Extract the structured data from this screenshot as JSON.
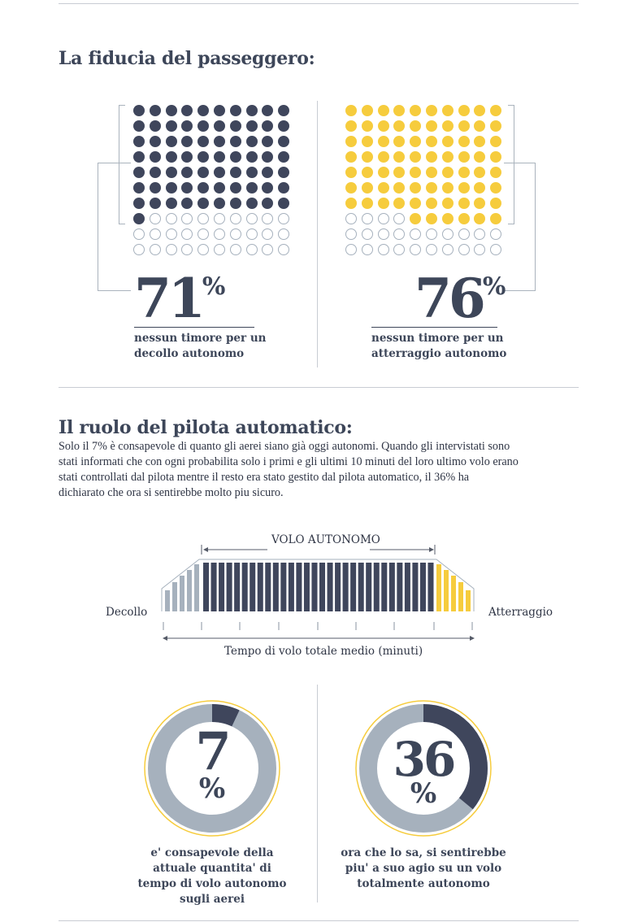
{
  "section1": {
    "title": "La fiducia del passeggero:",
    "left": {
      "percent": "71",
      "percent_sign": "%",
      "caption_line1": "nessun timore per un",
      "caption_line2": "decollo autonomo",
      "filled_dots": 71,
      "total_dots": 100,
      "color": "#3f465c"
    },
    "right": {
      "percent": "76",
      "percent_sign": "%",
      "caption_line1": "nessun timore per un",
      "caption_line2": "atterraggio autonomo",
      "filled_dots": 76,
      "total_dots": 100,
      "color": "#f6cc3d"
    }
  },
  "section2": {
    "title": "Il ruolo del pilota automatico:",
    "paragraph_lines": [
      "Solo il 7% è consapevole di quanto gli aerei siano già oggi autonomi. Quando gli intervistati sono",
      "stati informati che con ogni probabilita solo i primi e gli ultimi 10 minuti del loro ultimo volo erano",
      "stati controllati dal pilota mentre il resto era stato gestito dal pilota automatico, il 36% ha",
      "dichiarato che ora si sentirebbe molto piu sicuro."
    ],
    "flight_chart": {
      "top_label": "VOLO AUTONOMO",
      "left_label": "Decollo",
      "right_label": "Atterraggio",
      "axis_label": "Tempo di volo totale medio (minuti)",
      "colors": {
        "takeoff": "#a6b1bd",
        "cruise": "#3f465c",
        "landing": "#f6cc3d"
      }
    },
    "donuts": [
      {
        "number": "7",
        "sign": "%",
        "value": 7,
        "caption_lines": [
          "e' consapevole della",
          "attuale quantita' di",
          "tempo di volo autonomo",
          "sugli aerei"
        ]
      },
      {
        "number": "36",
        "sign": "%",
        "value": 36,
        "caption_lines": [
          "ora che lo sa, si sentirebbe",
          "piu' a suo agio su un volo",
          "totalmente autonomo"
        ]
      }
    ]
  }
}
